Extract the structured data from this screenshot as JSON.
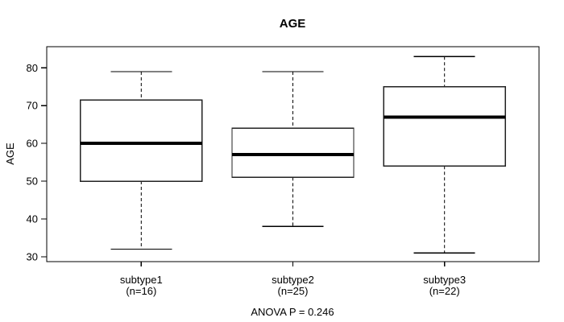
{
  "window": {
    "background": "#ffffff"
  },
  "chart_data": {
    "type": "boxplot",
    "title": "AGE",
    "ylabel": "AGE",
    "xlabel": "",
    "annotation": "ANOVA P = 0.246",
    "ylim": [
      28.7,
      85.6
    ],
    "yticks": [
      30,
      40,
      50,
      60,
      70,
      80
    ],
    "grid": false,
    "legend": "none",
    "box_fill": "#ffffff",
    "line_color": "#000000",
    "categories": [
      "subtype1",
      "subtype2",
      "subtype3"
    ],
    "groups": [
      {
        "label": "subtype1",
        "sublabel": "(n=16)",
        "n": 16,
        "whisker_low": 32,
        "q1": 50,
        "median": 60,
        "q3": 71.5,
        "whisker_high": 79
      },
      {
        "label": "subtype2",
        "sublabel": "(n=25)",
        "n": 25,
        "whisker_low": 38,
        "q1": 51,
        "median": 57,
        "q3": 64,
        "whisker_high": 79
      },
      {
        "label": "subtype3",
        "sublabel": "(n=22)",
        "n": 22,
        "whisker_low": 31,
        "q1": 54,
        "median": 67,
        "q3": 75,
        "whisker_high": 83
      }
    ]
  }
}
